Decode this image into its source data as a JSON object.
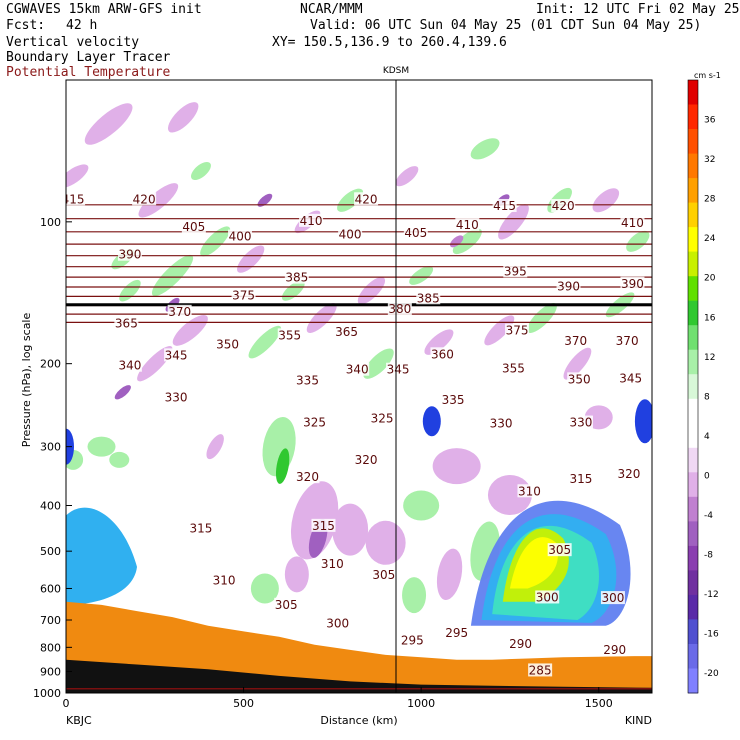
{
  "header": {
    "model_line": "CGWAVES 15km ARW-GFS init",
    "center": "NCAR/MMM",
    "init": "Init: 12 UTC Fri 02 May 25",
    "fcst_label": "Fcst:",
    "fcst_value": "42 h",
    "valid": "Valid: 06 UTC Sun 04 May 25 (01 CDT Sun 04 May 25)",
    "field1": "Vertical velocity",
    "field2": "Boundary Layer Tracer",
    "field3": "Potential Temperature",
    "xy": "XY= 150.5,136.9 to 260.4,139.6",
    "station_mid": "KDSM",
    "station_left": "KBJC",
    "station_right": "KIND"
  },
  "colors": {
    "theta": "#7a1010",
    "terrain": "#f08a10",
    "ground": "#111111"
  },
  "chart_data": {
    "type": "heatmap",
    "title": "Vertical velocity / Boundary Layer Tracer / Potential Temperature cross section",
    "xlabel": "Distance (km)",
    "ylabel": "Pressure (hPa), log scale",
    "xlim": [
      0,
      1650
    ],
    "ylim": [
      1000,
      50
    ],
    "y_scale": "log",
    "x_ticks": [
      0,
      500,
      1000,
      1500
    ],
    "y_ticks": [
      100,
      200,
      300,
      400,
      500,
      600,
      700,
      800,
      900,
      1000
    ],
    "vertical_marker_km": 940,
    "colorbar": {
      "unit": "cm s-1",
      "levels": [
        -20,
        -16,
        -12,
        -8,
        -4,
        0,
        4,
        8,
        12,
        16,
        20,
        24,
        28,
        32,
        36
      ],
      "colors": [
        "#8080ff",
        "#6a6ae8",
        "#5050d0",
        "#5a2aa8",
        "#7030a0",
        "#8a3eb0",
        "#a060c0",
        "#c080d0",
        "#e0b0e8",
        "#f0d8f4",
        "#ffffff",
        "#ffffff",
        "#d8f8d8",
        "#a8f0a8",
        "#70e070",
        "#30c830",
        "#60e000",
        "#c8f000",
        "#ffff00",
        "#ffd000",
        "#ffa000",
        "#ff7800",
        "#ff5000",
        "#ff2800",
        "#e00000"
      ],
      "labels": [
        -20,
        -16,
        -12,
        -8,
        -4,
        0,
        4,
        8,
        12,
        16,
        20,
        24,
        28,
        32,
        36
      ]
    },
    "theta_labels": [
      {
        "v": 415,
        "x": 20,
        "p": 90
      },
      {
        "v": 420,
        "x": 220,
        "p": 90
      },
      {
        "v": 420,
        "x": 845,
        "p": 90
      },
      {
        "v": 415,
        "x": 1235,
        "p": 93
      },
      {
        "v": 420,
        "x": 1400,
        "p": 93
      },
      {
        "v": 405,
        "x": 360,
        "p": 103
      },
      {
        "v": 400,
        "x": 490,
        "p": 108
      },
      {
        "v": 410,
        "x": 690,
        "p": 100
      },
      {
        "v": 400,
        "x": 800,
        "p": 107
      },
      {
        "v": 405,
        "x": 985,
        "p": 106
      },
      {
        "v": 410,
        "x": 1130,
        "p": 102
      },
      {
        "v": 410,
        "x": 1595,
        "p": 101
      },
      {
        "v": 390,
        "x": 180,
        "p": 118
      },
      {
        "v": 385,
        "x": 650,
        "p": 132
      },
      {
        "v": 395,
        "x": 1265,
        "p": 128
      },
      {
        "v": 390,
        "x": 1415,
        "p": 138
      },
      {
        "v": 390,
        "x": 1595,
        "p": 136
      },
      {
        "v": 375,
        "x": 500,
        "p": 144
      },
      {
        "v": 370,
        "x": 320,
        "p": 156
      },
      {
        "v": 385,
        "x": 1020,
        "p": 146
      },
      {
        "v": 380,
        "x": 940,
        "p": 154
      },
      {
        "v": 365,
        "x": 170,
        "p": 165
      },
      {
        "v": 365,
        "x": 790,
        "p": 172
      },
      {
        "v": 375,
        "x": 1270,
        "p": 171
      },
      {
        "v": 370,
        "x": 1435,
        "p": 180
      },
      {
        "v": 370,
        "x": 1580,
        "p": 180
      },
      {
        "v": 350,
        "x": 455,
        "p": 183
      },
      {
        "v": 355,
        "x": 630,
        "p": 175
      },
      {
        "v": 360,
        "x": 1060,
        "p": 192
      },
      {
        "v": 355,
        "x": 1260,
        "p": 206
      },
      {
        "v": 345,
        "x": 310,
        "p": 193
      },
      {
        "v": 340,
        "x": 180,
        "p": 203
      },
      {
        "v": 340,
        "x": 820,
        "p": 207
      },
      {
        "v": 345,
        "x": 935,
        "p": 207
      },
      {
        "v": 350,
        "x": 1445,
        "p": 217
      },
      {
        "v": 345,
        "x": 1590,
        "p": 216
      },
      {
        "v": 335,
        "x": 680,
        "p": 218
      },
      {
        "v": 335,
        "x": 1090,
        "p": 240
      },
      {
        "v": 330,
        "x": 310,
        "p": 237
      },
      {
        "v": 330,
        "x": 1225,
        "p": 269
      },
      {
        "v": 330,
        "x": 1450,
        "p": 268
      },
      {
        "v": 325,
        "x": 700,
        "p": 268
      },
      {
        "v": 325,
        "x": 890,
        "p": 263
      },
      {
        "v": 320,
        "x": 680,
        "p": 350
      },
      {
        "v": 320,
        "x": 845,
        "p": 322
      },
      {
        "v": 320,
        "x": 1585,
        "p": 345
      },
      {
        "v": 310,
        "x": 1305,
        "p": 375
      },
      {
        "v": 315,
        "x": 1450,
        "p": 353
      },
      {
        "v": 315,
        "x": 380,
        "p": 450
      },
      {
        "v": 315,
        "x": 725,
        "p": 444
      },
      {
        "v": 310,
        "x": 750,
        "p": 535
      },
      {
        "v": 310,
        "x": 445,
        "p": 580
      },
      {
        "v": 305,
        "x": 895,
        "p": 565
      },
      {
        "v": 305,
        "x": 1390,
        "p": 500
      },
      {
        "v": 305,
        "x": 620,
        "p": 653
      },
      {
        "v": 300,
        "x": 765,
        "p": 715
      },
      {
        "v": 300,
        "x": 1355,
        "p": 630
      },
      {
        "v": 300,
        "x": 1540,
        "p": 632
      },
      {
        "v": 295,
        "x": 975,
        "p": 778
      },
      {
        "v": 295,
        "x": 1100,
        "p": 750
      },
      {
        "v": 290,
        "x": 1280,
        "p": 790
      },
      {
        "v": 290,
        "x": 1545,
        "p": 815
      },
      {
        "v": 285,
        "x": 1335,
        "p": 900
      }
    ],
    "tropopause_line_p": 150
  }
}
